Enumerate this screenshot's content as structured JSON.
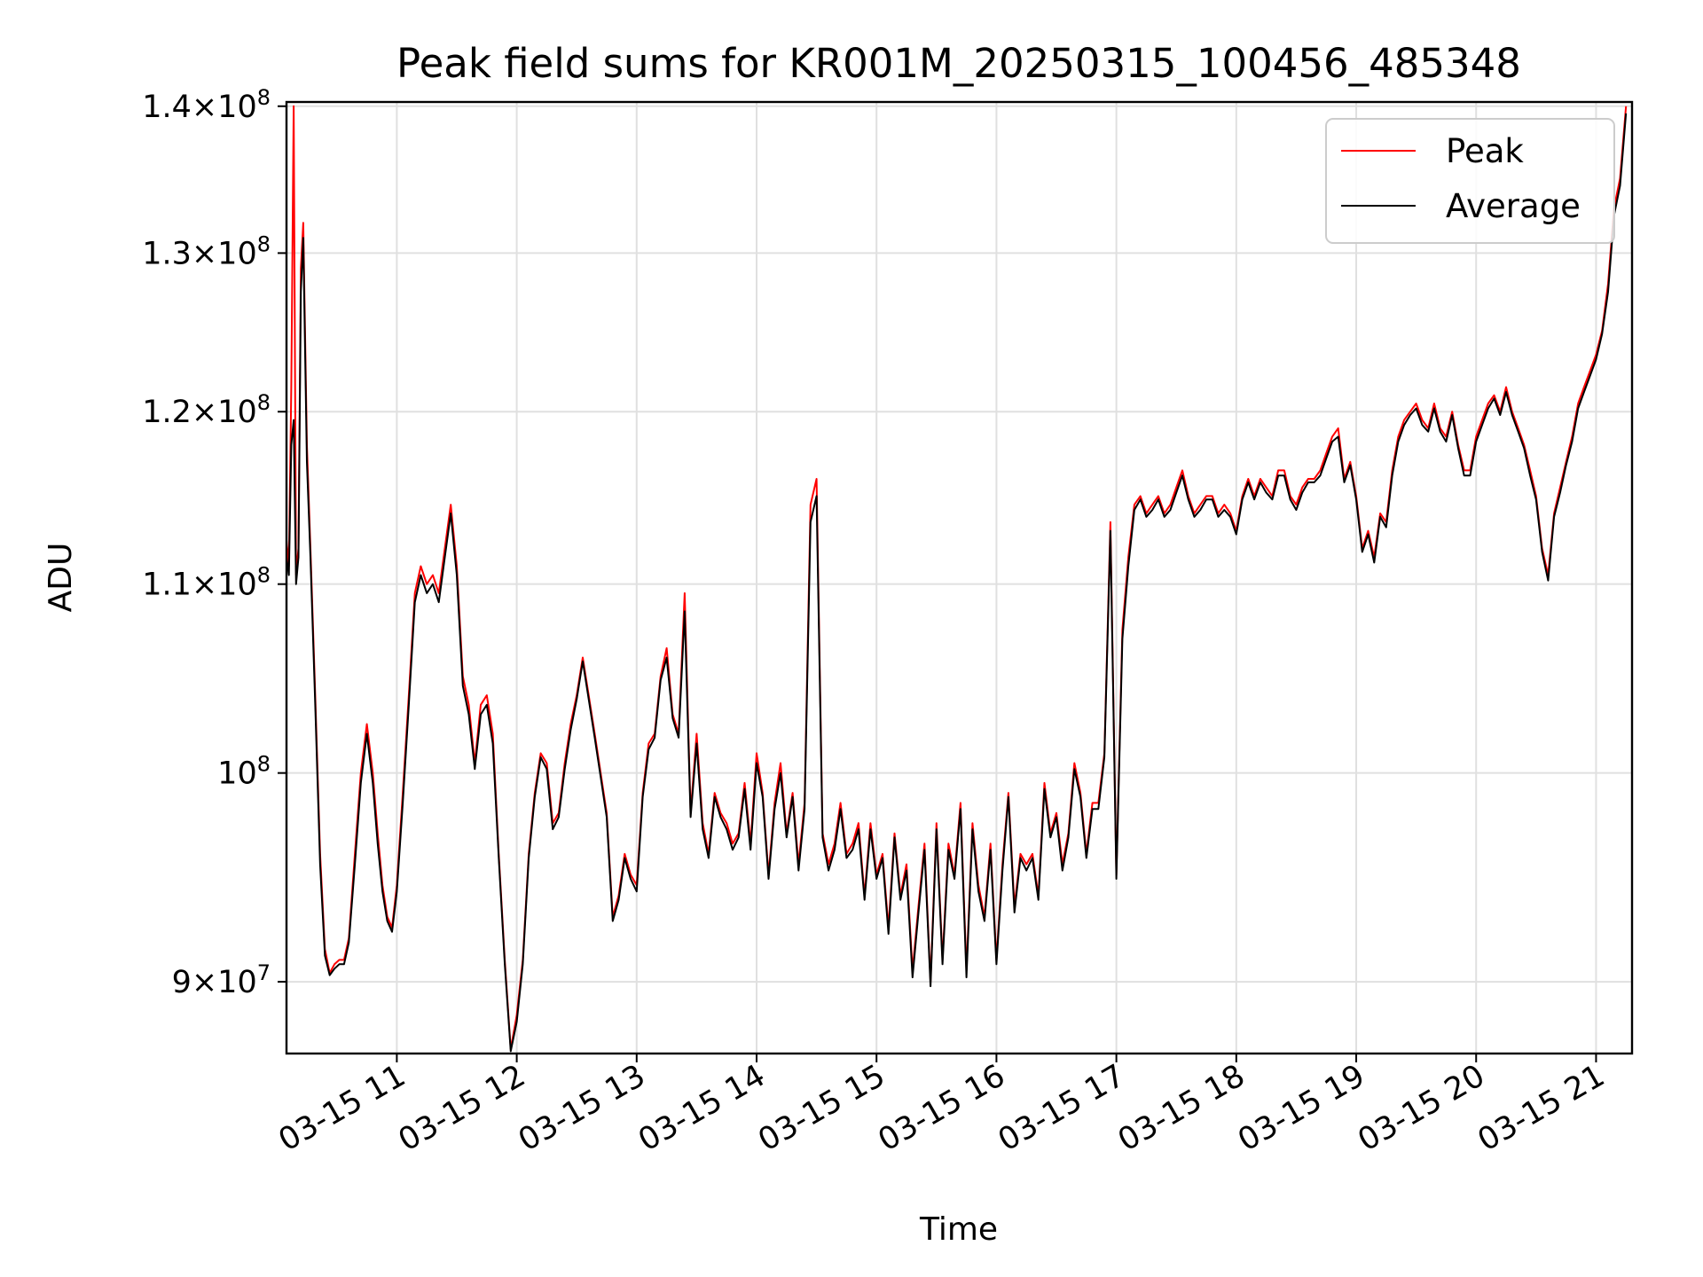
{
  "chart_data": {
    "type": "line",
    "title": "Peak field sums for KR001M_20250315_100456_485348",
    "xlabel": "Time",
    "ylabel": "ADU",
    "yscale": "log",
    "ylim": [
      86800000,
      140300000
    ],
    "xlim": [
      10.08,
      21.3
    ],
    "grid": true,
    "legend_position": "top-right",
    "xticks": [
      {
        "value": 11,
        "label": "03-15 11"
      },
      {
        "value": 12,
        "label": "03-15 12"
      },
      {
        "value": 13,
        "label": "03-15 13"
      },
      {
        "value": 14,
        "label": "03-15 14"
      },
      {
        "value": 15,
        "label": "03-15 15"
      },
      {
        "value": 16,
        "label": "03-15 16"
      },
      {
        "value": 17,
        "label": "03-15 17"
      },
      {
        "value": 18,
        "label": "03-15 18"
      },
      {
        "value": 19,
        "label": "03-15 19"
      },
      {
        "value": 20,
        "label": "03-15 20"
      },
      {
        "value": 21,
        "label": "03-15 21"
      }
    ],
    "yticks": [
      {
        "value": 90000000,
        "mantissa": "9",
        "exp": "7",
        "base": "10"
      },
      {
        "value": 100000000,
        "mantissa": "",
        "exp": "8",
        "base": "10"
      },
      {
        "value": 110000000,
        "mantissa": "1.1",
        "exp": "8",
        "base": "10"
      },
      {
        "value": 120000000,
        "mantissa": "1.2",
        "exp": "8",
        "base": "10"
      },
      {
        "value": 130000000,
        "mantissa": "1.3",
        "exp": "8",
        "base": "10"
      },
      {
        "value": 140000000,
        "mantissa": "1.4",
        "exp": "8",
        "base": "10"
      }
    ],
    "x_hours": [
      10.08,
      10.1,
      10.12,
      10.14,
      10.16,
      10.18,
      10.2,
      10.22,
      10.25,
      10.28,
      10.32,
      10.36,
      10.4,
      10.44,
      10.48,
      10.52,
      10.56,
      10.6,
      10.65,
      10.7,
      10.75,
      10.8,
      10.84,
      10.88,
      10.92,
      10.96,
      11.0,
      11.05,
      11.1,
      11.15,
      11.2,
      11.25,
      11.3,
      11.35,
      11.4,
      11.45,
      11.5,
      11.55,
      11.6,
      11.65,
      11.7,
      11.75,
      11.8,
      11.85,
      11.9,
      11.95,
      12.0,
      12.05,
      12.1,
      12.15,
      12.2,
      12.25,
      12.3,
      12.35,
      12.4,
      12.45,
      12.5,
      12.55,
      12.6,
      12.65,
      12.7,
      12.75,
      12.8,
      12.85,
      12.9,
      12.95,
      13.0,
      13.05,
      13.1,
      13.15,
      13.2,
      13.25,
      13.3,
      13.35,
      13.4,
      13.45,
      13.5,
      13.55,
      13.6,
      13.65,
      13.7,
      13.75,
      13.8,
      13.85,
      13.9,
      13.95,
      14.0,
      14.05,
      14.1,
      14.15,
      14.2,
      14.25,
      14.3,
      14.35,
      14.4,
      14.45,
      14.5,
      14.55,
      14.6,
      14.65,
      14.7,
      14.75,
      14.8,
      14.85,
      14.9,
      14.95,
      15.0,
      15.05,
      15.1,
      15.15,
      15.2,
      15.25,
      15.3,
      15.35,
      15.4,
      15.45,
      15.5,
      15.55,
      15.6,
      15.65,
      15.7,
      15.75,
      15.8,
      15.85,
      15.9,
      15.95,
      16.0,
      16.05,
      16.1,
      16.15,
      16.2,
      16.25,
      16.3,
      16.35,
      16.4,
      16.45,
      16.5,
      16.55,
      16.6,
      16.65,
      16.7,
      16.75,
      16.8,
      16.85,
      16.9,
      16.95,
      17.0,
      17.05,
      17.1,
      17.15,
      17.2,
      17.25,
      17.3,
      17.35,
      17.4,
      17.45,
      17.5,
      17.55,
      17.6,
      17.65,
      17.7,
      17.75,
      17.8,
      17.85,
      17.9,
      17.95,
      18.0,
      18.05,
      18.1,
      18.15,
      18.2,
      18.25,
      18.3,
      18.35,
      18.4,
      18.45,
      18.5,
      18.55,
      18.6,
      18.65,
      18.7,
      18.75,
      18.8,
      18.85,
      18.9,
      18.95,
      19.0,
      19.05,
      19.1,
      19.15,
      19.2,
      19.25,
      19.3,
      19.35,
      19.4,
      19.45,
      19.5,
      19.55,
      19.6,
      19.65,
      19.7,
      19.75,
      19.8,
      19.85,
      19.9,
      19.95,
      20.0,
      20.05,
      20.1,
      20.15,
      20.2,
      20.25,
      20.3,
      20.35,
      20.4,
      20.45,
      20.5,
      20.55,
      20.6,
      20.65,
      20.7,
      20.75,
      20.8,
      20.85,
      20.9,
      20.95,
      21.0,
      21.05,
      21.1,
      21.15,
      21.2,
      21.25,
      21.3
    ],
    "series": [
      {
        "name": "Peak",
        "color": "#ff0000",
        "values": [
          112.5,
          111.0,
          121.5,
          140.0,
          110.5,
          112.0,
          129.0,
          132.0,
          118.0,
          112.0,
          104.0,
          96.0,
          91.5,
          90.4,
          90.8,
          91.0,
          91.0,
          92.0,
          96.0,
          100.0,
          102.5,
          100.0,
          97.0,
          94.5,
          93.0,
          92.5,
          94.5,
          99.0,
          104.0,
          109.5,
          111.0,
          110.0,
          110.5,
          109.5,
          112.0,
          114.5,
          111.0,
          105.0,
          103.5,
          100.5,
          103.5,
          104.0,
          102.0,
          96.0,
          91.0,
          87.0,
          88.5,
          91.0,
          96.0,
          99.0,
          101.0,
          100.5,
          97.5,
          98.0,
          100.5,
          102.5,
          104.0,
          106.0,
          104.0,
          102.0,
          100.0,
          98.0,
          93.0,
          94.0,
          96.0,
          95.0,
          94.5,
          99.0,
          101.5,
          102.0,
          105.0,
          106.5,
          103.0,
          102.0,
          109.5,
          98.0,
          102.0,
          97.5,
          96.0,
          99.0,
          98.0,
          97.5,
          96.5,
          97.0,
          99.5,
          96.5,
          101.0,
          99.0,
          95.0,
          98.5,
          100.5,
          97.0,
          99.0,
          95.5,
          98.5,
          114.5,
          116.0,
          97.0,
          95.5,
          96.5,
          98.5,
          96.0,
          96.5,
          97.5,
          94.0,
          97.5,
          95.0,
          96.0,
          92.5,
          97.0,
          94.0,
          95.5,
          90.5,
          93.5,
          96.5,
          90.0,
          97.5,
          91.0,
          96.5,
          95.0,
          98.5,
          90.5,
          97.5,
          94.5,
          93.0,
          96.5,
          91.0,
          95.5,
          99.0,
          93.5,
          96.0,
          95.5,
          96.0,
          94.0,
          99.5,
          97.0,
          98.0,
          95.5,
          97.0,
          100.5,
          99.0,
          96.0,
          98.5,
          98.5,
          101.0,
          113.5,
          95.0,
          107.5,
          111.5,
          114.5,
          115.0,
          114.0,
          114.5,
          115.0,
          114.0,
          114.5,
          115.5,
          116.5,
          115.0,
          114.0,
          114.5,
          115.0,
          115.0,
          114.0,
          114.5,
          114.0,
          113.0,
          115.0,
          116.0,
          115.0,
          116.0,
          115.5,
          115.0,
          116.5,
          116.5,
          115.0,
          114.5,
          115.5,
          116.0,
          116.0,
          116.5,
          117.5,
          118.5,
          119.0,
          116.0,
          117.0,
          115.0,
          112.0,
          113.0,
          111.5,
          114.0,
          113.5,
          116.5,
          118.5,
          119.5,
          120.0,
          120.5,
          119.5,
          119.0,
          120.5,
          119.0,
          118.5,
          120.0,
          118.0,
          116.5,
          116.5,
          118.5,
          119.5,
          120.5,
          121.0,
          120.0,
          121.5,
          120.0,
          119.0,
          118.0,
          116.5,
          115.0,
          112.0,
          110.5,
          114.0,
          115.5,
          117.0,
          118.5,
          120.5,
          121.5,
          122.5,
          123.5,
          125.0,
          128.0,
          133.0,
          135.0,
          140.0
        ]
      },
      {
        "name": "Average",
        "color": "#000000",
        "values": [
          111.5,
          110.5,
          118.0,
          119.5,
          110.0,
          111.5,
          127.5,
          131.0,
          117.0,
          111.5,
          103.5,
          95.5,
          91.2,
          90.3,
          90.6,
          90.8,
          90.8,
          91.8,
          95.5,
          99.5,
          102.0,
          99.5,
          96.5,
          94.2,
          92.8,
          92.3,
          94.2,
          98.5,
          103.5,
          109.0,
          110.5,
          109.5,
          110.0,
          109.0,
          111.5,
          114.0,
          110.5,
          104.5,
          103.0,
          100.2,
          103.0,
          103.5,
          101.5,
          95.8,
          90.8,
          86.9,
          88.2,
          90.8,
          95.8,
          98.8,
          100.8,
          100.2,
          97.2,
          97.8,
          100.2,
          102.2,
          103.8,
          105.8,
          103.8,
          101.8,
          99.8,
          97.8,
          92.8,
          93.8,
          95.8,
          94.8,
          94.2,
          98.8,
          101.2,
          101.8,
          104.8,
          106.0,
          102.8,
          101.8,
          108.5,
          97.8,
          101.5,
          97.2,
          95.8,
          98.8,
          97.8,
          97.2,
          96.2,
          96.8,
          99.2,
          96.2,
          100.5,
          98.8,
          94.8,
          98.2,
          100.0,
          96.8,
          98.8,
          95.2,
          98.2,
          113.5,
          115.0,
          96.8,
          95.2,
          96.2,
          98.2,
          95.8,
          96.2,
          97.2,
          93.8,
          97.2,
          94.8,
          95.8,
          92.2,
          96.8,
          93.8,
          95.2,
          90.2,
          93.2,
          96.2,
          89.8,
          97.2,
          90.8,
          96.2,
          94.8,
          98.2,
          90.2,
          97.2,
          94.2,
          92.8,
          96.2,
          90.8,
          95.2,
          98.8,
          93.2,
          95.8,
          95.2,
          95.8,
          93.8,
          99.2,
          96.8,
          97.8,
          95.2,
          96.8,
          100.2,
          98.8,
          95.8,
          98.2,
          98.2,
          100.8,
          113.0,
          94.8,
          107.0,
          111.0,
          114.2,
          114.8,
          113.8,
          114.2,
          114.8,
          113.8,
          114.2,
          115.2,
          116.2,
          114.8,
          113.8,
          114.2,
          114.8,
          114.8,
          113.8,
          114.2,
          113.8,
          112.8,
          114.8,
          115.8,
          114.8,
          115.8,
          115.2,
          114.8,
          116.2,
          116.2,
          114.8,
          114.2,
          115.2,
          115.8,
          115.8,
          116.2,
          117.2,
          118.2,
          118.5,
          115.8,
          116.8,
          114.8,
          111.8,
          112.8,
          111.2,
          113.8,
          113.2,
          116.2,
          118.2,
          119.2,
          119.8,
          120.2,
          119.2,
          118.8,
          120.2,
          118.8,
          118.2,
          119.8,
          117.8,
          116.2,
          116.2,
          118.2,
          119.2,
          120.2,
          120.8,
          119.8,
          121.2,
          119.8,
          118.8,
          117.8,
          116.2,
          114.8,
          111.8,
          110.2,
          113.8,
          115.2,
          116.8,
          118.2,
          120.2,
          121.2,
          122.2,
          123.2,
          124.8,
          127.5,
          132.5,
          134.5,
          139.5
        ]
      }
    ]
  }
}
